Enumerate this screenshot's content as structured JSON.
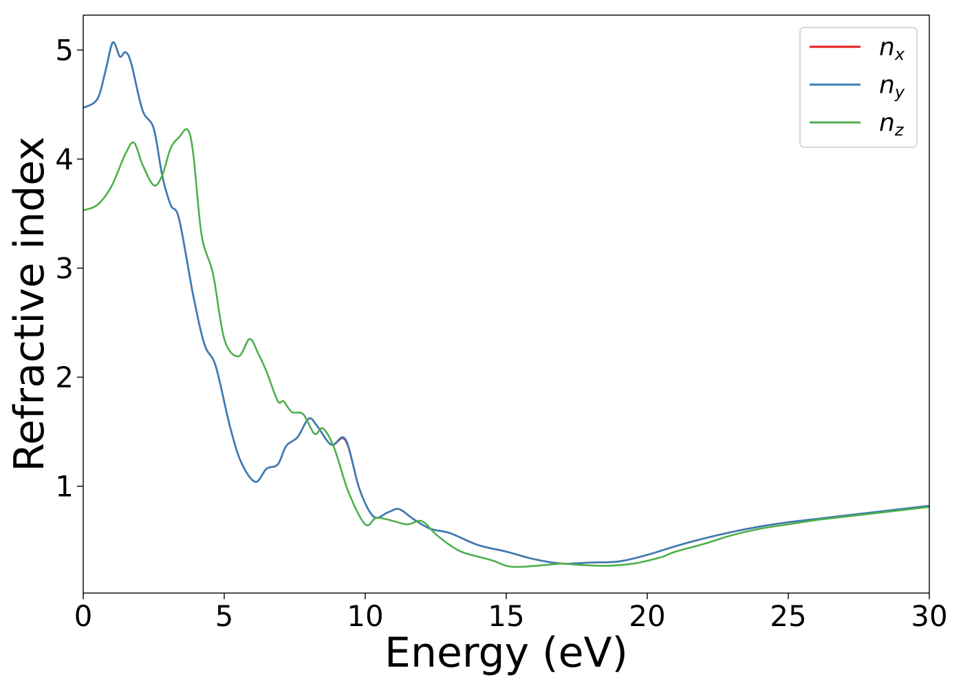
{
  "chart_data": {
    "type": "line",
    "title": "",
    "xlabel": "Energy (eV)",
    "ylabel": "Refractive index",
    "xlim": [
      0,
      30
    ],
    "ylim": [
      0.02,
      5.32
    ],
    "xticks": [
      0,
      5,
      10,
      15,
      20,
      25,
      30
    ],
    "yticks": [
      1,
      2,
      3,
      4,
      5
    ],
    "grid": false,
    "legend_position": "top-right",
    "series": [
      {
        "name": "n",
        "subscript": "x",
        "color": "#e41a1c",
        "x": [
          0,
          0.5,
          0.8,
          1.05,
          1.3,
          1.5,
          1.7,
          2.1,
          2.5,
          2.8,
          3.1,
          3.4,
          3.9,
          4.3,
          4.7,
          5.2,
          5.6,
          6.1,
          6.5,
          6.9,
          7.2,
          7.6,
          8.0,
          8.3,
          8.8,
          9.3,
          9.8,
          10.3,
          10.8,
          11.2,
          11.7,
          12.3,
          13.0,
          14.0,
          15.0,
          16.0,
          17.0,
          18.0,
          19.0,
          20.0,
          21.0,
          22.0,
          23.0,
          24.0,
          25.0,
          26.0,
          27.0,
          28.0,
          29.0,
          30.0
        ],
        "y": [
          4.47,
          4.55,
          4.82,
          5.07,
          4.94,
          4.98,
          4.88,
          4.45,
          4.28,
          3.85,
          3.58,
          3.45,
          2.75,
          2.3,
          2.1,
          1.55,
          1.22,
          1.04,
          1.16,
          1.2,
          1.37,
          1.45,
          1.62,
          1.55,
          1.38,
          1.42,
          0.97,
          0.72,
          0.76,
          0.79,
          0.7,
          0.61,
          0.57,
          0.46,
          0.4,
          0.33,
          0.29,
          0.3,
          0.31,
          0.37,
          0.45,
          0.52,
          0.58,
          0.63,
          0.67,
          0.7,
          0.73,
          0.76,
          0.79,
          0.82
        ]
      },
      {
        "name": "n",
        "subscript": "y",
        "color": "#377eb8",
        "x": [
          0,
          0.5,
          0.8,
          1.05,
          1.3,
          1.5,
          1.7,
          2.1,
          2.5,
          2.8,
          3.1,
          3.4,
          3.9,
          4.3,
          4.7,
          5.2,
          5.6,
          6.1,
          6.5,
          6.9,
          7.2,
          7.6,
          8.0,
          8.3,
          8.8,
          9.3,
          9.8,
          10.3,
          10.8,
          11.2,
          11.7,
          12.3,
          13.0,
          14.0,
          15.0,
          16.0,
          17.0,
          18.0,
          19.0,
          20.0,
          21.0,
          22.0,
          23.0,
          24.0,
          25.0,
          26.0,
          27.0,
          28.0,
          29.0,
          30.0
        ],
        "y": [
          4.47,
          4.55,
          4.82,
          5.07,
          4.94,
          4.98,
          4.88,
          4.45,
          4.28,
          3.85,
          3.58,
          3.45,
          2.75,
          2.3,
          2.1,
          1.55,
          1.22,
          1.04,
          1.16,
          1.2,
          1.37,
          1.45,
          1.62,
          1.55,
          1.38,
          1.43,
          0.97,
          0.72,
          0.76,
          0.79,
          0.7,
          0.61,
          0.57,
          0.46,
          0.4,
          0.33,
          0.29,
          0.3,
          0.31,
          0.37,
          0.45,
          0.52,
          0.58,
          0.63,
          0.67,
          0.7,
          0.73,
          0.76,
          0.79,
          0.82
        ]
      },
      {
        "name": "n",
        "subscript": "z",
        "color": "#4daf4a",
        "x": [
          0,
          0.5,
          1.0,
          1.5,
          1.8,
          2.1,
          2.5,
          2.8,
          3.1,
          3.4,
          3.7,
          3.9,
          4.2,
          4.6,
          5.0,
          5.5,
          5.9,
          6.2,
          6.5,
          6.9,
          7.1,
          7.4,
          7.8,
          8.2,
          8.5,
          8.9,
          9.4,
          10.0,
          10.4,
          11.0,
          11.5,
          12.0,
          12.5,
          13.0,
          13.5,
          14.5,
          15.0,
          15.5,
          16.5,
          17.0,
          17.5,
          18.5,
          19.5,
          20.5,
          21.0,
          22.0,
          23.0,
          24.0,
          25.0,
          26.0,
          27.0,
          28.0,
          29.0,
          30.0
        ],
        "y": [
          3.53,
          3.58,
          3.75,
          4.05,
          4.15,
          3.95,
          3.76,
          3.85,
          4.1,
          4.2,
          4.27,
          4.05,
          3.3,
          2.95,
          2.35,
          2.19,
          2.35,
          2.22,
          2.05,
          1.78,
          1.78,
          1.68,
          1.66,
          1.48,
          1.53,
          1.35,
          0.95,
          0.65,
          0.71,
          0.68,
          0.65,
          0.68,
          0.56,
          0.46,
          0.39,
          0.32,
          0.27,
          0.26,
          0.28,
          0.29,
          0.28,
          0.27,
          0.29,
          0.35,
          0.4,
          0.47,
          0.55,
          0.61,
          0.65,
          0.69,
          0.72,
          0.75,
          0.78,
          0.81
        ]
      }
    ]
  }
}
